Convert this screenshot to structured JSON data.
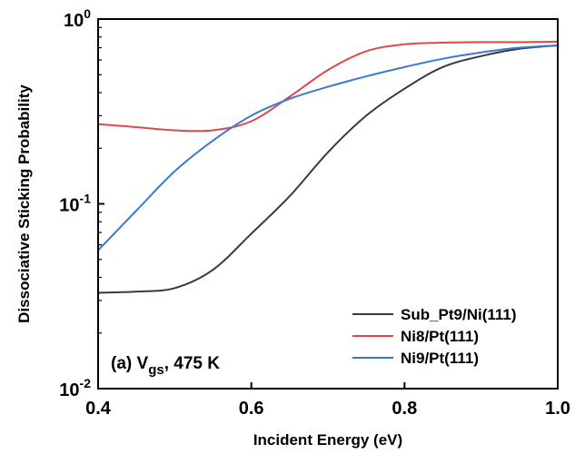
{
  "chart_data": {
    "type": "line",
    "xlabel": "Incident Energy (eV)",
    "ylabel": "Dissociative Sticking Probability",
    "x_scale": "linear",
    "y_scale": "log",
    "xlim": [
      0.4,
      1.0
    ],
    "ylim": [
      0.01,
      1.0
    ],
    "x_ticks": [
      {
        "value": 0.4,
        "label": "0.4"
      },
      {
        "value": 0.6,
        "label": "0.6"
      },
      {
        "value": 0.8,
        "label": "0.8"
      },
      {
        "value": 1.0,
        "label": "1.0"
      }
    ],
    "y_ticks": [
      {
        "value": 1.0,
        "base": "10",
        "exp": "0"
      },
      {
        "value": 0.1,
        "base": "10",
        "exp": "-1"
      },
      {
        "value": 0.01,
        "base": "10",
        "exp": "-2"
      }
    ],
    "grid": false,
    "legend_position": "bottom-right",
    "annotation": {
      "prefix": "(a) V",
      "subscript": "gs",
      "suffix": ", 475 K"
    },
    "series": [
      {
        "name": "Sub_Pt9/Ni(111)",
        "color": "#3a3a3a",
        "x": [
          0.4,
          0.45,
          0.5,
          0.55,
          0.6,
          0.65,
          0.7,
          0.75,
          0.8,
          0.85,
          0.9,
          0.95,
          1.0
        ],
        "y": [
          0.033,
          0.0335,
          0.035,
          0.044,
          0.069,
          0.11,
          0.19,
          0.3,
          0.42,
          0.55,
          0.63,
          0.69,
          0.72
        ]
      },
      {
        "name": "Ni8/Pt(111)",
        "color": "#e0474c",
        "x": [
          0.4,
          0.45,
          0.5,
          0.55,
          0.6,
          0.65,
          0.7,
          0.75,
          0.8,
          0.85,
          0.9,
          0.95,
          1.0
        ],
        "y": [
          0.27,
          0.26,
          0.25,
          0.25,
          0.28,
          0.38,
          0.53,
          0.67,
          0.73,
          0.745,
          0.75,
          0.75,
          0.755
        ]
      },
      {
        "name": "Ni9/Pt(111)",
        "color": "#3c78d0",
        "x": [
          0.4,
          0.45,
          0.5,
          0.55,
          0.6,
          0.65,
          0.7,
          0.75,
          0.8,
          0.85,
          0.9,
          0.95,
          1.0
        ],
        "y": [
          0.056,
          0.092,
          0.15,
          0.22,
          0.3,
          0.37,
          0.43,
          0.49,
          0.55,
          0.61,
          0.66,
          0.7,
          0.72
        ]
      }
    ]
  }
}
